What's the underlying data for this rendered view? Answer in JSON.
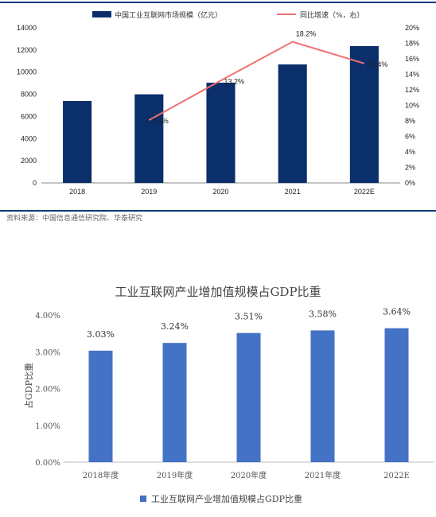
{
  "source_note": "资料来源：中国信息通信研究院、华泰研究",
  "colors": {
    "top_bar": "#0b2f6b",
    "top_line": "#f07070",
    "bottom_bar": "#4472c4",
    "rule": "#003a7d"
  },
  "chart_data": [
    {
      "type": "bar",
      "categories": [
        "2018",
        "2019",
        "2020",
        "2021",
        "2022E"
      ],
      "series": [
        {
          "name": "中国工业互联网市场规模（亿元）",
          "type": "bar",
          "axis": "left",
          "values": [
            7400,
            8000,
            9050,
            10700,
            12350
          ]
        },
        {
          "name": "同比增速（%，右）",
          "type": "line",
          "axis": "right",
          "values": [
            null,
            8.1,
            13.2,
            18.2,
            15.4
          ],
          "labels": [
            "",
            "8.1%",
            "13.2%",
            "18.2%",
            "15.4%"
          ]
        }
      ],
      "ylim": [
        0,
        14000
      ],
      "yticks": [
        "0",
        "2000",
        "4000",
        "6000",
        "8000",
        "10000",
        "12000",
        "14000"
      ],
      "y2lim": [
        0,
        20
      ],
      "y2ticks": [
        "0%",
        "2%",
        "4%",
        "6%",
        "8%",
        "10%",
        "12%",
        "14%",
        "16%",
        "18%",
        "20%"
      ],
      "legend_position": "top",
      "grid": false
    },
    {
      "type": "bar",
      "title": "工业互联网产业增加值规模占GDP比重",
      "ylabel": "占GDP比重",
      "categories": [
        "2018年度",
        "2019年度",
        "2020年度",
        "2021年度",
        "2022E"
      ],
      "series": [
        {
          "name": "工业互联网产业增加值规模占GDP比重",
          "values": [
            3.03,
            3.24,
            3.51,
            3.58,
            3.64
          ],
          "labels": [
            "3.03%",
            "3.24%",
            "3.51%",
            "3.58%",
            "3.64%"
          ]
        }
      ],
      "ylim": [
        0,
        4
      ],
      "yticks": [
        "0.00%",
        "1.00%",
        "2.00%",
        "3.00%",
        "4.00%"
      ],
      "legend_position": "bottom",
      "grid": false
    }
  ]
}
